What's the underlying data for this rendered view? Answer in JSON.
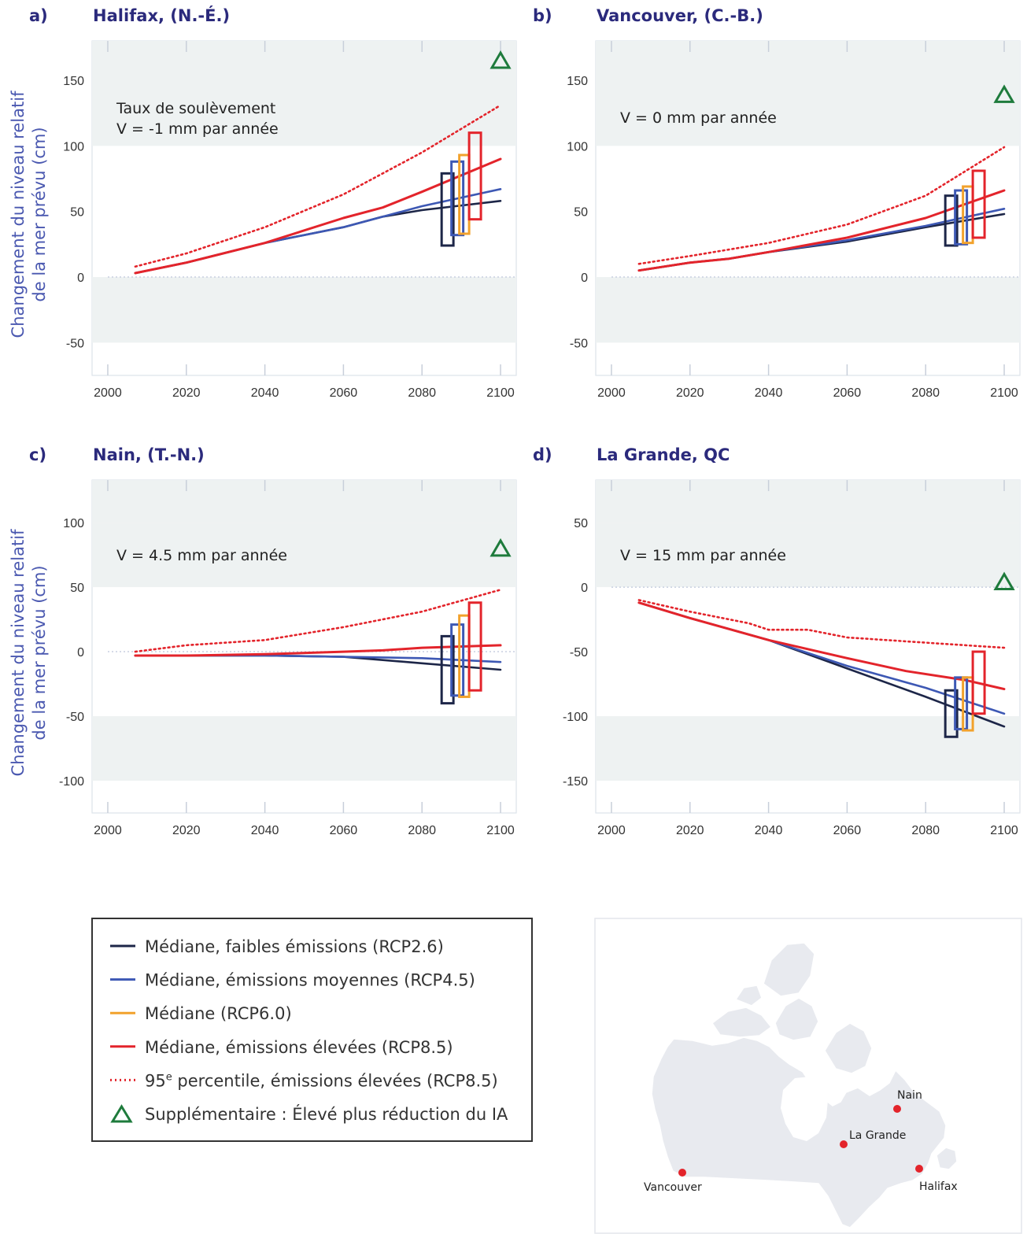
{
  "colors": {
    "rcp26": "#1d2648",
    "rcp45": "#3d58b4",
    "rcp60": "#f2a22c",
    "rcp85": "#e3242b",
    "p95": "#e3242b",
    "supp": "#1e7b3c"
  },
  "chart_data": [
    {
      "type": "line",
      "letter": "a)",
      "title": "Halifax, (N.-É.)",
      "ylabel": [
        "Changement du niveau relatif",
        "de la mer prévu  (cm)"
      ],
      "annotation": [
        "Taux de soulèvement",
        "V = -1 mm par année"
      ],
      "xticks": [
        "2000",
        "2020",
        "2040",
        "2060",
        "2080",
        "2100"
      ],
      "yticks": [
        "150",
        "100",
        "50",
        "0",
        "-50"
      ],
      "xlim": [
        1996,
        2104
      ],
      "ylim": [
        -75,
        180
      ],
      "bands": [
        [
          100,
          150
        ],
        [
          -50,
          0
        ]
      ],
      "series": {
        "rcp26": {
          "x": [
            2007,
            2020,
            2040,
            2060,
            2070,
            2080,
            2100
          ],
          "y": [
            3,
            11,
            26,
            38,
            46,
            51,
            58
          ]
        },
        "rcp45": {
          "x": [
            2007,
            2020,
            2040,
            2060,
            2080,
            2100
          ],
          "y": [
            3,
            11,
            26,
            38,
            54,
            67
          ]
        },
        "rcp85": {
          "x": [
            2007,
            2020,
            2040,
            2060,
            2070,
            2080,
            2100
          ],
          "y": [
            3,
            11,
            26,
            45,
            53,
            65,
            90
          ]
        },
        "p95": {
          "x": [
            2007,
            2020,
            2040,
            2060,
            2080,
            2100
          ],
          "y": [
            8,
            18,
            38,
            63,
            95,
            131
          ]
        }
      },
      "boxes": {
        "rcp26": [
          24,
          79
        ],
        "rcp45": [
          32,
          88
        ],
        "rcp60": [
          33,
          93
        ],
        "rcp85": [
          44,
          110
        ]
      },
      "supplementary_y": 165
    },
    {
      "type": "line",
      "letter": "b)",
      "title": "Vancouver, (C.-B.)",
      "ylabel": [],
      "annotation": [
        "V = 0 mm par année"
      ],
      "xticks": [
        "2000",
        "2020",
        "2040",
        "2060",
        "2080",
        "2100"
      ],
      "yticks": [
        "150",
        "100",
        "50",
        "0",
        "-50"
      ],
      "xlim": [
        1996,
        2104
      ],
      "ylim": [
        -75,
        180
      ],
      "bands": [
        [
          100,
          150
        ],
        [
          -50,
          0
        ]
      ],
      "series": {
        "rcp26": {
          "x": [
            2007,
            2020,
            2030,
            2040,
            2060,
            2080,
            2100
          ],
          "y": [
            5,
            11,
            14,
            19,
            27,
            38,
            48
          ]
        },
        "rcp45": {
          "x": [
            2007,
            2020,
            2030,
            2040,
            2060,
            2080,
            2100
          ],
          "y": [
            5,
            11,
            14,
            19,
            28,
            39,
            52
          ]
        },
        "rcp85": {
          "x": [
            2007,
            2020,
            2030,
            2040,
            2060,
            2080,
            2100
          ],
          "y": [
            5,
            11,
            14,
            19,
            30,
            45,
            66
          ]
        },
        "p95": {
          "x": [
            2007,
            2020,
            2040,
            2060,
            2080,
            2100
          ],
          "y": [
            10,
            16,
            26,
            40,
            62,
            99
          ]
        }
      },
      "boxes": {
        "rcp26": [
          24,
          62
        ],
        "rcp45": [
          25,
          66
        ],
        "rcp60": [
          26,
          69
        ],
        "rcp85": [
          30,
          81
        ]
      },
      "supplementary_y": 139
    },
    {
      "type": "line",
      "letter": "c)",
      "title": "Nain, (T.-N.)",
      "ylabel": [
        "Changement du niveau relatif",
        "de la mer prévu  (cm)"
      ],
      "annotation": [
        "V = 4.5 mm par année"
      ],
      "xticks": [
        "2000",
        "2020",
        "2040",
        "2060",
        "2080",
        "2100"
      ],
      "yticks": [
        "100",
        "50",
        "0",
        "-50",
        "-100"
      ],
      "xlim": [
        1996,
        2104
      ],
      "ylim": [
        -125,
        133
      ],
      "bands": [
        [
          50,
          100
        ],
        [
          -100,
          -50
        ]
      ],
      "series": {
        "rcp26": {
          "x": [
            2007,
            2020,
            2040,
            2060,
            2080,
            2100
          ],
          "y": [
            -3,
            -3,
            -3,
            -4,
            -9,
            -14
          ]
        },
        "rcp45": {
          "x": [
            2007,
            2020,
            2040,
            2060,
            2080,
            2100
          ],
          "y": [
            -3,
            -3,
            -3,
            -4,
            -5,
            -8
          ]
        },
        "rcp85": {
          "x": [
            2007,
            2020,
            2040,
            2060,
            2070,
            2080,
            2100
          ],
          "y": [
            -3,
            -3,
            -2,
            0,
            1,
            3,
            5
          ]
        },
        "p95": {
          "x": [
            2007,
            2020,
            2040,
            2060,
            2080,
            2100
          ],
          "y": [
            0,
            5,
            9,
            19,
            31,
            48
          ]
        }
      },
      "boxes": {
        "rcp26": [
          -40,
          12
        ],
        "rcp45": [
          -34,
          21
        ],
        "rcp60": [
          -35,
          28
        ],
        "rcp85": [
          -30,
          38
        ]
      },
      "supplementary_y": 80
    },
    {
      "type": "line",
      "letter": "d)",
      "title": "La Grande, QC",
      "ylabel": [],
      "annotation": [
        "V = 15 mm par année"
      ],
      "xticks": [
        "2000",
        "2020",
        "2040",
        "2060",
        "2080",
        "2100"
      ],
      "yticks": [
        "50",
        "0",
        "-50",
        "-100",
        "-150"
      ],
      "xlim": [
        1996,
        2104
      ],
      "ylim": [
        -175,
        83
      ],
      "bands": [
        [
          0,
          50
        ],
        [
          -150,
          -100
        ]
      ],
      "series": {
        "rcp26": {
          "x": [
            2007,
            2020,
            2040,
            2060,
            2080,
            2100
          ],
          "y": [
            -12,
            -24,
            -41,
            -63,
            -85,
            -108
          ]
        },
        "rcp45": {
          "x": [
            2007,
            2020,
            2040,
            2060,
            2080,
            2100
          ],
          "y": [
            -12,
            -24,
            -41,
            -61,
            -78,
            -98
          ]
        },
        "rcp85": {
          "x": [
            2007,
            2020,
            2040,
            2050,
            2060,
            2075,
            2090,
            2100
          ],
          "y": [
            -12,
            -24,
            -41,
            -48,
            -55,
            -65,
            -72,
            -79
          ]
        },
        "p95": {
          "x": [
            2007,
            2020,
            2035,
            2040,
            2050,
            2060,
            2080,
            2100
          ],
          "y": [
            -10,
            -19,
            -28,
            -33,
            -33,
            -39,
            -43,
            -47
          ]
        }
      },
      "boxes": {
        "rcp26": [
          -116,
          -80
        ],
        "rcp45": [
          -110,
          -70
        ],
        "rcp60": [
          -111,
          -70
        ],
        "rcp85": [
          -98,
          -50
        ]
      },
      "supplementary_y": 4
    }
  ],
  "legend": {
    "items": [
      {
        "key": "rcp26",
        "label": "Médiane, faibles émissions (RCP2.6)"
      },
      {
        "key": "rcp45",
        "label": "Médiane, émissions moyennes (RCP4.5)"
      },
      {
        "key": "rcp60",
        "label": "Médiane (RCP6.0)"
      },
      {
        "key": "rcp85",
        "label": "Médiane, émissions élevées (RCP8.5)"
      },
      {
        "key": "p95",
        "label_prefix": "95",
        "label_sup": "e",
        "label_suffix": " percentile, émissions élevées (RCP8.5)"
      },
      {
        "key": "supp",
        "label": "Supplémentaire : Élevé plus réduction du IA"
      }
    ]
  },
  "map": {
    "cities": [
      {
        "name": "Nain"
      },
      {
        "name": "La Grande"
      },
      {
        "name": "Vancouver"
      },
      {
        "name": "Halifax"
      }
    ]
  }
}
